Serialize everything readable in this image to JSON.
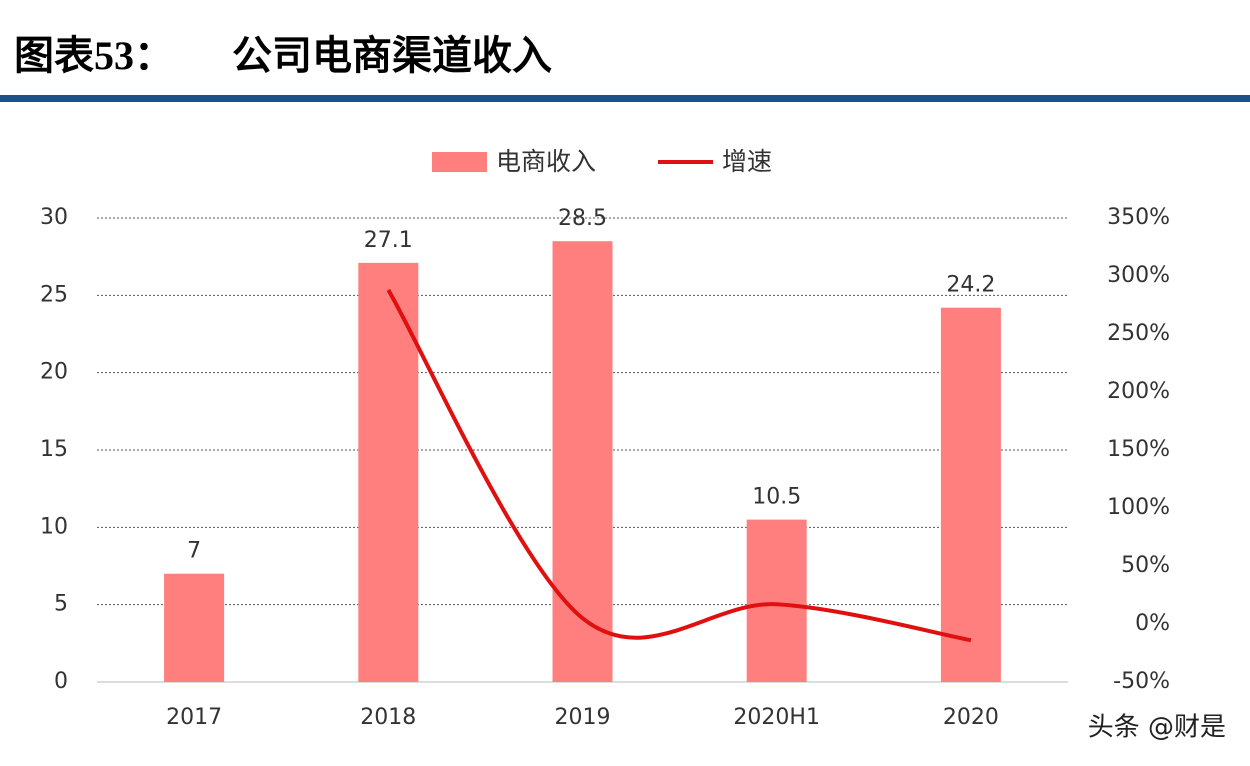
{
  "figure_label": "图表53：",
  "chart_data": {
    "type": "bar-line",
    "title": "公司电商渠道收入",
    "categories": [
      "2017",
      "2018",
      "2019",
      "2020H1",
      "2020"
    ],
    "series": [
      {
        "name": "电商收入",
        "type": "bar",
        "color": "#ff7f7f",
        "values": [
          7,
          27.1,
          28.5,
          10.5,
          24.2
        ]
      },
      {
        "name": "增速",
        "type": "line",
        "color": "#e01010",
        "axis": "y2",
        "values": [
          null,
          288,
          5,
          17,
          -14
        ]
      }
    ],
    "ylim": [
      0,
      30
    ],
    "yticks": [
      0,
      5,
      10,
      15,
      20,
      25,
      30
    ],
    "y2lim": [
      -50,
      350
    ],
    "y2ticks": [
      {
        "value": -50,
        "label": "-50%"
      },
      {
        "value": 0,
        "label": "0%"
      },
      {
        "value": 50,
        "label": "50%"
      },
      {
        "value": 100,
        "label": "100%"
      },
      {
        "value": 150,
        "label": "150%"
      },
      {
        "value": 200,
        "label": "200%"
      },
      {
        "value": 250,
        "label": "250%"
      },
      {
        "value": 300,
        "label": "300%"
      },
      {
        "value": 350,
        "label": "350%"
      }
    ],
    "grid": true
  },
  "watermark": "头条 @财是"
}
